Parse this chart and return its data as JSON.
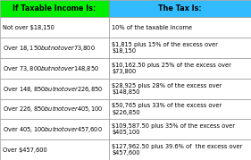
{
  "header": [
    "If Taxable Income Is:",
    "The Tax Is:"
  ],
  "header_bg": [
    "#00ee00",
    "#33bbff"
  ],
  "header_text_color": "#000000",
  "rows": [
    [
      "Not over $18,150",
      "10% of the taxable income"
    ],
    [
      "Over $18,150 but not over $73,800",
      "$1,815 plus 15% of the excess over\n$18,150"
    ],
    [
      "Over $73,800 but not over $148,850",
      "$10,162.50 plus 25% of the excess over\n$73,800"
    ],
    [
      "Over $148,850 but not over $226,850",
      "$28,925 plus 28% of the excess over\n$148,850"
    ],
    [
      "Over $226,850 but not over $405,100",
      "$50,765 plus 33% of the excess over\n$226,850"
    ],
    [
      "Over $405,100 but not over $457,600",
      "$109,587.50 plus 35% of the excess over\n$405,100"
    ],
    [
      "Over $457,600",
      "$127,962.50 plus 39.6% of  the excess over\n$457,600"
    ]
  ],
  "grid_color": "#888888",
  "text_color": "#000000",
  "col_split": 0.435,
  "font_size": 4.8,
  "header_font_size": 5.8,
  "background_color": "#ffffff",
  "fig_width": 2.81,
  "fig_height": 1.79,
  "fig_dpi": 100
}
